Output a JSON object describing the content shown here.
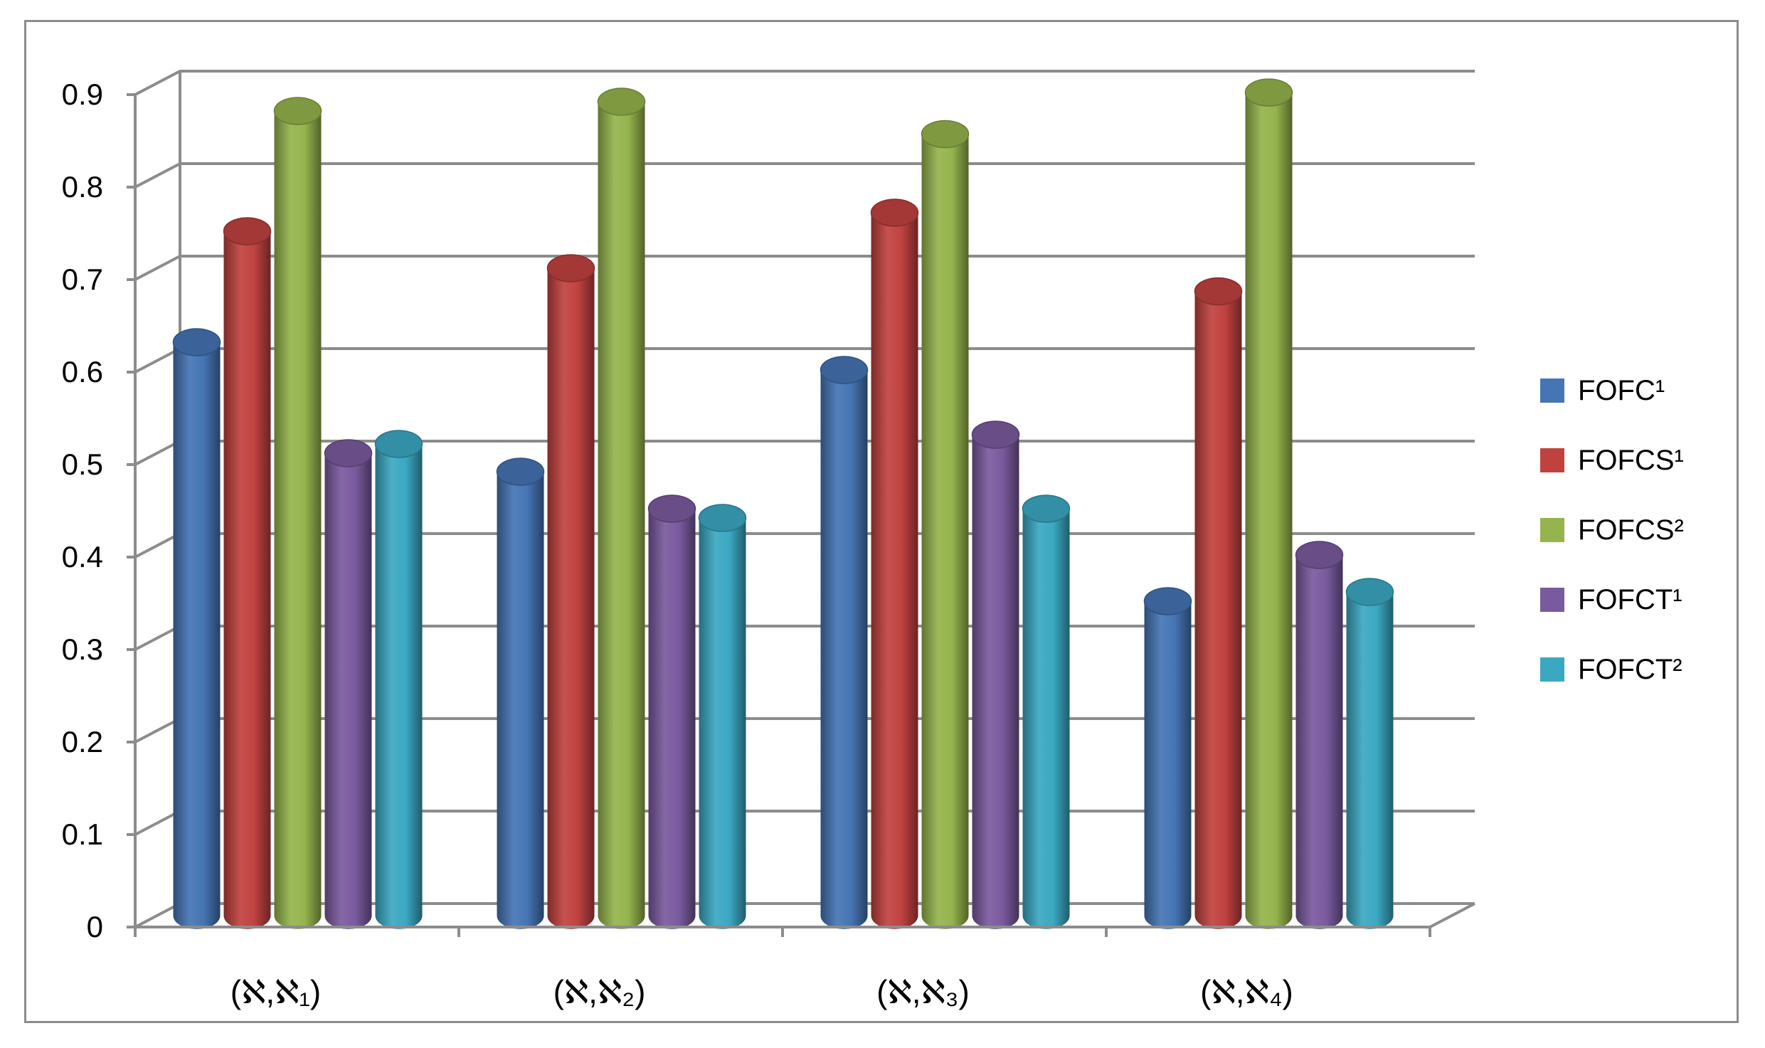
{
  "chart_data": {
    "type": "bar",
    "style": "3d-cylinder",
    "categories": [
      "(ℵ,ℵ₁)",
      "(ℵ,ℵ₂)",
      "(ℵ,ℵ₃)",
      "(ℵ,ℵ₄)"
    ],
    "series": [
      {
        "name": "FOFC¹",
        "color": "#4575b4",
        "values": [
          0.62,
          0.48,
          0.59,
          0.34
        ]
      },
      {
        "name": "FOFCS¹",
        "color": "#c0423f",
        "values": [
          0.74,
          0.7,
          0.76,
          0.675
        ]
      },
      {
        "name": "FOFCS²",
        "color": "#95b44d",
        "values": [
          0.87,
          0.88,
          0.845,
          0.89
        ]
      },
      {
        "name": "FOFCT¹",
        "color": "#7a5a9e",
        "values": [
          0.5,
          0.44,
          0.52,
          0.39
        ]
      },
      {
        "name": "FOFCT²",
        "color": "#3ba8c2",
        "values": [
          0.51,
          0.43,
          0.44,
          0.35
        ]
      }
    ],
    "ylim": [
      0,
      0.9
    ],
    "yticks": [
      "0",
      "0.1",
      "0.2",
      "0.3",
      "0.4",
      "0.5",
      "0.6",
      "0.7",
      "0.8",
      "0.9"
    ],
    "grid": true,
    "legend_position": "right",
    "title": "",
    "xlabel": "",
    "ylabel": ""
  }
}
